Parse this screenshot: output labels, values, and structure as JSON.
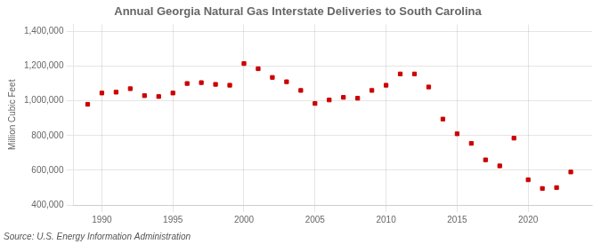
{
  "chart_data": {
    "type": "scatter",
    "title": "Annual Georgia Natural Gas Interstate Deliveries to South Carolina",
    "ylabel": "Million Cubic Feet",
    "annotations": [
      "Source: U.S. Energy Information Administration"
    ],
    "x": [
      1989,
      1990,
      1991,
      1992,
      1993,
      1994,
      1995,
      1996,
      1997,
      1998,
      1999,
      2000,
      2001,
      2002,
      2003,
      2004,
      2005,
      2006,
      2007,
      2008,
      2009,
      2010,
      2011,
      2012,
      2013,
      2014,
      2015,
      2016,
      2017,
      2018,
      2019,
      2020,
      2021,
      2022,
      2023
    ],
    "values": [
      980000,
      1045000,
      1050000,
      1070000,
      1030000,
      1025000,
      1045000,
      1100000,
      1105000,
      1095000,
      1090000,
      1215000,
      1185000,
      1135000,
      1110000,
      1060000,
      985000,
      1005000,
      1020000,
      1015000,
      1060000,
      1090000,
      1155000,
      1155000,
      1080000,
      895000,
      810000,
      755000,
      660000,
      625000,
      785000,
      545000,
      495000,
      500000,
      590000
    ],
    "color": "#cc0000",
    "marker": "square",
    "xlim": [
      1988.0,
      2024.5
    ],
    "xticks": [
      1990,
      1995,
      2000,
      2005,
      2010,
      2015,
      2020
    ],
    "ylim": [
      400000,
      1440000
    ],
    "yticks": [
      {
        "value": 400000,
        "label": "400,000"
      },
      {
        "value": 600000,
        "label": "600,000"
      },
      {
        "value": 800000,
        "label": "800,000"
      },
      {
        "value": 1000000,
        "label": "1,000,000"
      },
      {
        "value": 1200000,
        "label": "1,200,000"
      },
      {
        "value": 1400000,
        "label": "1,400,000"
      }
    ],
    "grid": true
  }
}
